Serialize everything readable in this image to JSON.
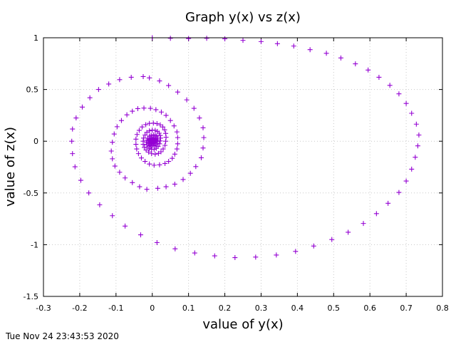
{
  "timestamp": "Tue Nov 24 23:43:53 2020",
  "colors": {
    "series": "#9400d3",
    "grid": "#c8c8c8",
    "axis": "#000000"
  },
  "chart_data": {
    "type": "scatter",
    "title": "Graph y(x) vs z(x)",
    "xlabel": "value of y(x)",
    "ylabel": "value of z(x)",
    "xlim": [
      -0.3,
      0.8
    ],
    "ylim": [
      -1.5,
      1
    ],
    "xticks": [
      -0.3,
      -0.2,
      -0.1,
      0,
      0.1,
      0.2,
      0.3,
      0.4,
      0.5,
      0.6,
      0.7,
      0.8
    ],
    "yticks": [
      -1.5,
      -1,
      -0.5,
      0,
      0.5,
      1
    ],
    "xtick_labels": [
      "-0.3",
      "-0.2",
      "-0.1",
      "0",
      "0.1",
      "0.2",
      "0.3",
      "0.4",
      "0.5",
      "0.6",
      "0.7",
      "0.8"
    ],
    "ytick_labels": [
      "-1.5",
      "-1",
      "-0.5",
      "0",
      "0.5",
      "1"
    ],
    "grid": true,
    "marker": "plus",
    "series": [
      {
        "color": "#9400d3",
        "points": [
          [
            0.0,
            1.0
          ],
          [
            0.05,
            0.995
          ],
          [
            0.1,
            0.993
          ],
          [
            0.15,
            0.995
          ],
          [
            0.2,
            0.99
          ],
          [
            0.25,
            0.975
          ],
          [
            0.3,
            0.963
          ],
          [
            0.345,
            0.943
          ],
          [
            0.39,
            0.92
          ],
          [
            0.435,
            0.885
          ],
          [
            0.48,
            0.85
          ],
          [
            0.52,
            0.805
          ],
          [
            0.56,
            0.748
          ],
          [
            0.595,
            0.688
          ],
          [
            0.625,
            0.618
          ],
          [
            0.655,
            0.54
          ],
          [
            0.68,
            0.458
          ],
          [
            0.7,
            0.365
          ],
          [
            0.715,
            0.27
          ],
          [
            0.728,
            0.165
          ],
          [
            0.735,
            0.06
          ],
          [
            0.732,
            -0.045
          ],
          [
            0.725,
            -0.155
          ],
          [
            0.715,
            -0.27
          ],
          [
            0.7,
            -0.385
          ],
          [
            0.68,
            -0.495
          ],
          [
            0.65,
            -0.6
          ],
          [
            0.618,
            -0.7
          ],
          [
            0.582,
            -0.795
          ],
          [
            0.54,
            -0.88
          ],
          [
            0.495,
            -0.95
          ],
          [
            0.445,
            -1.013
          ],
          [
            0.395,
            -1.065
          ],
          [
            0.342,
            -1.1
          ],
          [
            0.285,
            -1.12
          ],
          [
            0.228,
            -1.125
          ],
          [
            0.172,
            -1.108
          ],
          [
            0.117,
            -1.08
          ],
          [
            0.063,
            -1.04
          ],
          [
            0.013,
            -0.98
          ],
          [
            -0.032,
            -0.905
          ],
          [
            -0.075,
            -0.82
          ],
          [
            -0.11,
            -0.72
          ],
          [
            -0.145,
            -0.615
          ],
          [
            -0.175,
            -0.5
          ],
          [
            -0.197,
            -0.378
          ],
          [
            -0.213,
            -0.247
          ],
          [
            -0.22,
            -0.12
          ],
          [
            -0.222,
            0.0
          ],
          [
            -0.22,
            0.118
          ],
          [
            -0.21,
            0.225
          ],
          [
            -0.193,
            0.33
          ],
          [
            -0.172,
            0.42
          ],
          [
            -0.148,
            0.5
          ],
          [
            -0.12,
            0.553
          ],
          [
            -0.09,
            0.595
          ],
          [
            -0.058,
            0.618
          ],
          [
            -0.025,
            0.625
          ],
          [
            -0.008,
            0.612
          ],
          [
            0.02,
            0.583
          ],
          [
            0.045,
            0.538
          ],
          [
            0.07,
            0.475
          ],
          [
            0.095,
            0.4
          ],
          [
            0.115,
            0.318
          ],
          [
            0.13,
            0.225
          ],
          [
            0.14,
            0.13
          ],
          [
            0.142,
            0.035
          ],
          [
            0.14,
            -0.065
          ],
          [
            0.135,
            -0.16
          ],
          [
            0.12,
            -0.245
          ],
          [
            0.105,
            -0.31
          ],
          [
            0.085,
            -0.37
          ],
          [
            0.062,
            -0.415
          ],
          [
            0.038,
            -0.44
          ],
          [
            0.015,
            -0.455
          ],
          [
            -0.015,
            -0.465
          ],
          [
            -0.035,
            -0.44
          ],
          [
            -0.055,
            -0.4
          ],
          [
            -0.075,
            -0.355
          ],
          [
            -0.09,
            -0.3
          ],
          [
            -0.103,
            -0.24
          ],
          [
            -0.11,
            -0.17
          ],
          [
            -0.113,
            -0.095
          ],
          [
            -0.11,
            -0.01
          ],
          [
            -0.105,
            0.07
          ],
          [
            -0.097,
            0.14
          ],
          [
            -0.085,
            0.2
          ],
          [
            -0.07,
            0.255
          ],
          [
            -0.055,
            0.29
          ],
          [
            -0.04,
            0.315
          ],
          [
            -0.023,
            0.32
          ],
          [
            -0.005,
            0.318
          ],
          [
            0.01,
            0.305
          ],
          [
            0.025,
            0.282
          ],
          [
            0.038,
            0.25
          ],
          [
            0.05,
            0.2
          ],
          [
            0.06,
            0.148
          ],
          [
            0.068,
            0.09
          ],
          [
            0.07,
            0.035
          ],
          [
            0.07,
            -0.025
          ],
          [
            0.068,
            -0.075
          ],
          [
            0.062,
            -0.125
          ],
          [
            0.055,
            -0.165
          ],
          [
            0.045,
            -0.195
          ],
          [
            0.035,
            -0.215
          ],
          [
            0.02,
            -0.228
          ],
          [
            0.005,
            -0.232
          ],
          [
            -0.008,
            -0.22
          ],
          [
            -0.02,
            -0.195
          ],
          [
            -0.03,
            -0.162
          ],
          [
            -0.038,
            -0.12
          ],
          [
            -0.043,
            -0.075
          ],
          [
            -0.045,
            -0.03
          ],
          [
            -0.045,
            0.02
          ],
          [
            -0.042,
            0.065
          ],
          [
            -0.036,
            0.105
          ],
          [
            -0.028,
            0.138
          ],
          [
            -0.018,
            0.16
          ],
          [
            -0.008,
            0.172
          ],
          [
            0.003,
            0.175
          ],
          [
            0.013,
            0.17
          ],
          [
            0.022,
            0.158
          ],
          [
            0.029,
            0.138
          ],
          [
            0.034,
            0.11
          ],
          [
            0.037,
            0.075
          ],
          [
            0.038,
            0.038
          ],
          [
            0.037,
            0.0
          ],
          [
            0.035,
            -0.04
          ],
          [
            0.03,
            -0.075
          ],
          [
            0.024,
            -0.102
          ],
          [
            0.017,
            -0.118
          ],
          [
            0.008,
            -0.125
          ],
          [
            -0.002,
            -0.12
          ],
          [
            -0.01,
            -0.105
          ],
          [
            -0.017,
            -0.085
          ],
          [
            -0.022,
            -0.06
          ],
          [
            -0.025,
            -0.03
          ],
          [
            -0.025,
            0.0
          ],
          [
            -0.024,
            0.03
          ],
          [
            -0.02,
            0.06
          ],
          [
            -0.015,
            0.085
          ],
          [
            -0.008,
            0.1
          ],
          [
            0.0,
            0.108
          ],
          [
            0.008,
            0.105
          ],
          [
            0.014,
            0.095
          ],
          [
            0.019,
            0.078
          ],
          [
            0.022,
            0.055
          ],
          [
            0.023,
            0.03
          ],
          [
            0.022,
            0.003
          ],
          [
            0.02,
            -0.025
          ],
          [
            0.016,
            -0.05
          ],
          [
            0.011,
            -0.068
          ],
          [
            0.005,
            -0.078
          ],
          [
            -0.002,
            -0.078
          ],
          [
            -0.008,
            -0.07
          ],
          [
            -0.012,
            -0.055
          ],
          [
            -0.015,
            -0.035
          ],
          [
            -0.016,
            -0.013
          ],
          [
            -0.015,
            0.01
          ],
          [
            -0.012,
            0.03
          ],
          [
            -0.008,
            0.048
          ],
          [
            -0.003,
            0.058
          ],
          [
            0.003,
            0.062
          ],
          [
            0.008,
            0.058
          ],
          [
            0.012,
            0.048
          ],
          [
            0.014,
            0.032
          ],
          [
            0.015,
            0.015
          ],
          [
            0.014,
            -0.003
          ],
          [
            0.012,
            -0.02
          ],
          [
            0.009,
            -0.035
          ],
          [
            0.005,
            -0.044
          ],
          [
            0.0,
            -0.047
          ],
          [
            -0.004,
            -0.043
          ],
          [
            -0.008,
            -0.035
          ],
          [
            -0.01,
            -0.022
          ],
          [
            -0.01,
            -0.008
          ],
          [
            -0.009,
            0.006
          ],
          [
            -0.007,
            0.018
          ],
          [
            -0.004,
            0.027
          ],
          [
            0.0,
            0.032
          ],
          [
            0.004,
            0.032
          ],
          [
            0.007,
            0.027
          ],
          [
            0.009,
            0.018
          ],
          [
            0.009,
            0.008
          ],
          [
            0.008,
            -0.003
          ],
          [
            0.006,
            -0.013
          ],
          [
            0.003,
            -0.02
          ],
          [
            0.0,
            -0.023
          ],
          [
            -0.003,
            -0.02
          ],
          [
            -0.005,
            -0.014
          ],
          [
            -0.006,
            -0.006
          ],
          [
            -0.006,
            0.003
          ],
          [
            -0.004,
            0.01
          ],
          [
            -0.002,
            0.015
          ],
          [
            0.001,
            0.017
          ],
          [
            0.003,
            0.015
          ],
          [
            0.005,
            0.01
          ],
          [
            0.005,
            0.004
          ],
          [
            0.004,
            -0.002
          ],
          [
            0.003,
            -0.007
          ],
          [
            0.001,
            -0.01
          ],
          [
            -0.001,
            -0.01
          ],
          [
            -0.002,
            -0.007
          ],
          [
            -0.003,
            -0.003
          ],
          [
            -0.003,
            0.001
          ],
          [
            -0.002,
            0.005
          ],
          [
            0.0,
            0.007
          ],
          [
            0.001,
            0.006
          ],
          [
            0.002,
            0.003
          ],
          [
            0.002,
            0.0
          ],
          [
            0.001,
            -0.003
          ],
          [
            0.0,
            -0.004
          ],
          [
            -0.001,
            -0.003
          ],
          [
            -0.001,
            0.0
          ],
          [
            0.0,
            0.002
          ],
          [
            0.0,
            0.0
          ]
        ]
      }
    ]
  }
}
